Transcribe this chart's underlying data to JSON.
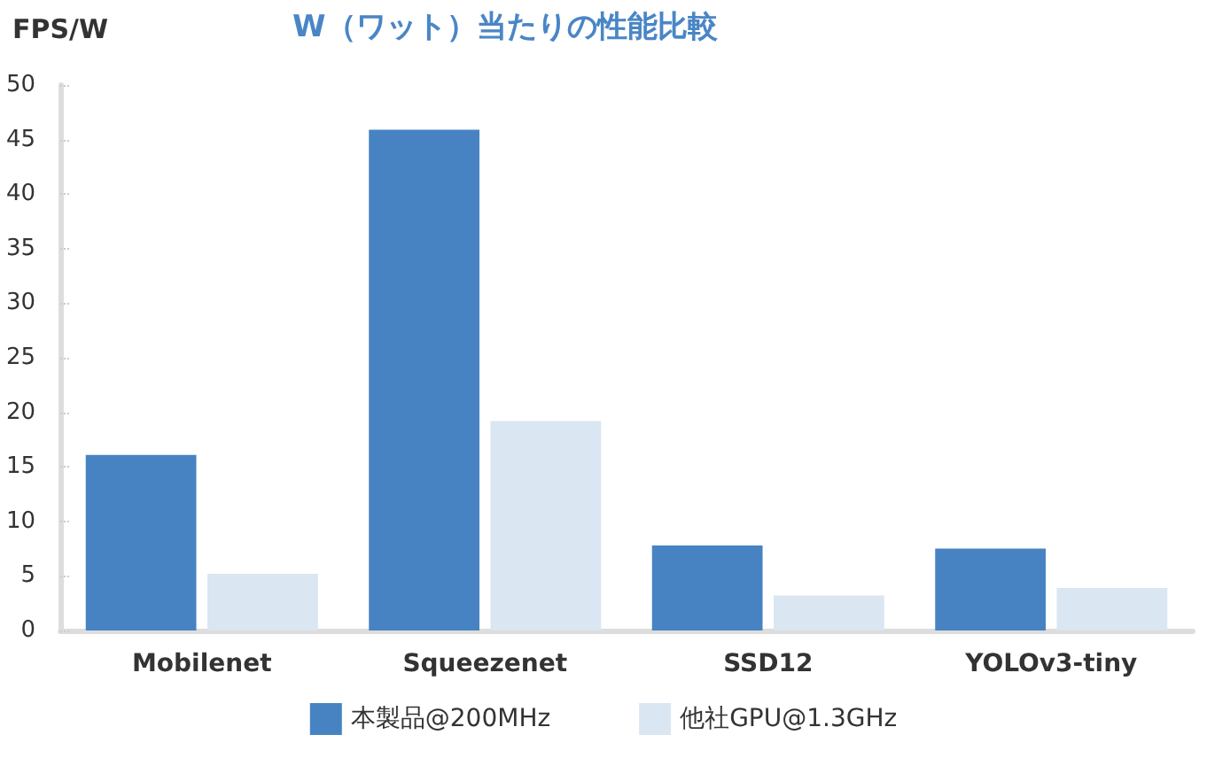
{
  "chart_data": {
    "type": "bar",
    "title": "W（ワット）当たりの性能比較",
    "ylabel": "FPS/W",
    "categories": [
      "Mobilenet",
      "Squeezenet",
      "SSD12",
      "YOLOv3-tiny"
    ],
    "series": [
      {
        "name": "本製品@200MHz",
        "color": "#4783c2",
        "values": [
          16.1,
          45.9,
          7.8,
          7.5
        ]
      },
      {
        "name": "他社GPU@1.3GHz",
        "color": "#dae6f2",
        "values": [
          5.2,
          19.2,
          3.2,
          3.9
        ]
      }
    ],
    "ylim": [
      0,
      50
    ],
    "yticks": [
      0,
      5,
      10,
      15,
      20,
      25,
      30,
      35,
      40,
      45,
      50
    ],
    "grid": false,
    "legend": "bottom"
  }
}
